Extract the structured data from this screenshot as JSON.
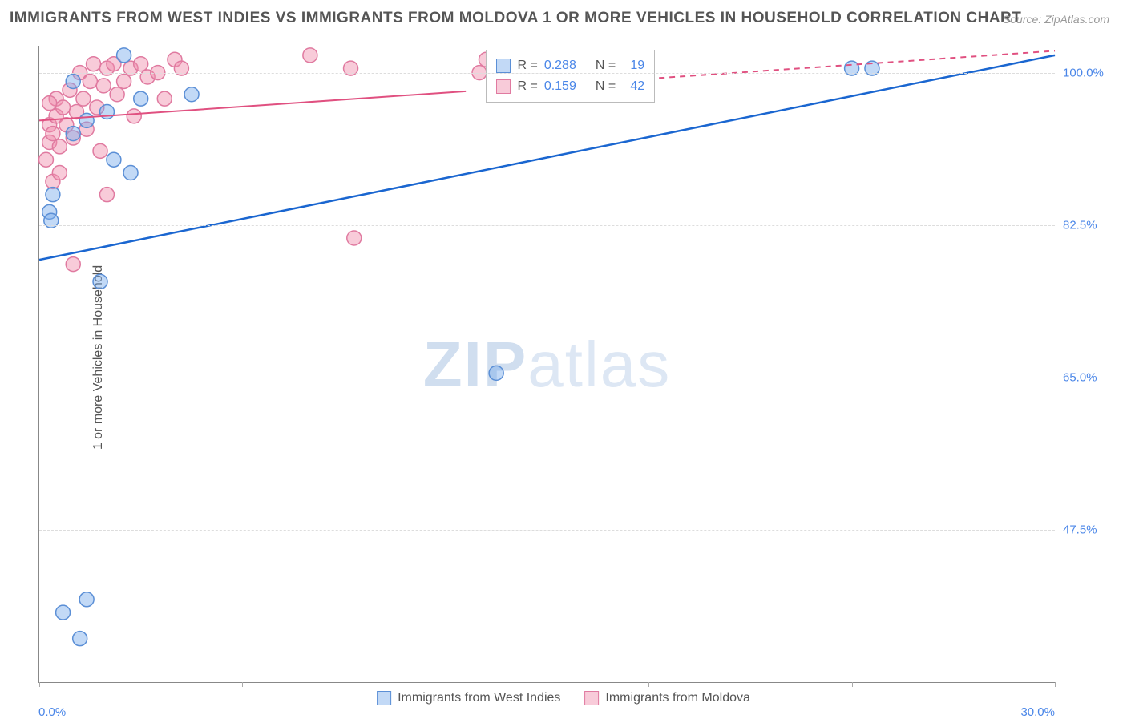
{
  "title": "IMMIGRANTS FROM WEST INDIES VS IMMIGRANTS FROM MOLDOVA 1 OR MORE VEHICLES IN HOUSEHOLD CORRELATION CHART",
  "source": "Source: ZipAtlas.com",
  "y_axis_label": "1 or more Vehicles in Household",
  "watermark_a": "ZIP",
  "watermark_b": "atlas",
  "chart": {
    "type": "scatter",
    "xlim": [
      0,
      30
    ],
    "ylim": [
      30,
      103
    ],
    "x_tick_labels": [
      "0.0%",
      "30.0%"
    ],
    "y_ticks": [
      47.5,
      65.0,
      82.5,
      100.0
    ],
    "y_tick_labels": [
      "47.5%",
      "65.0%",
      "82.5%",
      "100.0%"
    ],
    "x_tick_positions_pct": [
      0,
      20,
      40,
      60,
      80,
      100
    ],
    "grid_color": "#dddddd",
    "background_color": "#ffffff",
    "axis_color": "#888888",
    "label_color": "#4a86e8",
    "series": [
      {
        "name": "Immigrants from West Indies",
        "color_fill": "rgba(120,170,235,0.45)",
        "color_stroke": "#5b8fd6",
        "line_color": "#1a66d0",
        "marker_radius": 9,
        "r_value": "0.288",
        "n_value": "19",
        "trend": {
          "x1": 0,
          "y1": 78.5,
          "x2": 30,
          "y2": 102
        },
        "points": [
          [
            0.3,
            84.0
          ],
          [
            0.35,
            83.0
          ],
          [
            0.4,
            86.0
          ],
          [
            0.7,
            38.0
          ],
          [
            1.2,
            35.0
          ],
          [
            1.4,
            39.5
          ],
          [
            1.8,
            76.0
          ],
          [
            1.0,
            93.0
          ],
          [
            1.4,
            94.5
          ],
          [
            2.0,
            95.5
          ],
          [
            2.2,
            90.0
          ],
          [
            2.5,
            102.0
          ],
          [
            2.7,
            88.5
          ],
          [
            3.0,
            97.0
          ],
          [
            4.5,
            97.5
          ],
          [
            13.5,
            65.5
          ],
          [
            24.0,
            100.5
          ],
          [
            24.6,
            100.5
          ],
          [
            1.0,
            99.0
          ]
        ]
      },
      {
        "name": "Immigrants from Moldova",
        "color_fill": "rgba(240,140,170,0.45)",
        "color_stroke": "#e07aa0",
        "line_color": "#e05080",
        "marker_radius": 9,
        "r_value": "0.159",
        "n_value": "42",
        "trend": {
          "x1": 0,
          "y1": 94.5,
          "x2": 30,
          "y2": 102.5
        },
        "points": [
          [
            0.2,
            90.0
          ],
          [
            0.3,
            92.0
          ],
          [
            0.3,
            94.0
          ],
          [
            0.4,
            93.0
          ],
          [
            0.5,
            95.0
          ],
          [
            0.5,
            97.0
          ],
          [
            0.6,
            91.5
          ],
          [
            0.7,
            96.0
          ],
          [
            0.8,
            94.0
          ],
          [
            0.9,
            98.0
          ],
          [
            1.0,
            92.5
          ],
          [
            1.1,
            95.5
          ],
          [
            1.2,
            100.0
          ],
          [
            1.3,
            97.0
          ],
          [
            1.4,
            93.5
          ],
          [
            1.5,
            99.0
          ],
          [
            1.6,
            101.0
          ],
          [
            1.7,
            96.0
          ],
          [
            1.9,
            98.5
          ],
          [
            2.0,
            100.5
          ],
          [
            2.2,
            101.0
          ],
          [
            2.3,
            97.5
          ],
          [
            2.5,
            99.0
          ],
          [
            2.7,
            100.5
          ],
          [
            2.8,
            95.0
          ],
          [
            3.0,
            101.0
          ],
          [
            3.2,
            99.5
          ],
          [
            3.5,
            100.0
          ],
          [
            3.7,
            97.0
          ],
          [
            4.0,
            101.5
          ],
          [
            1.0,
            78.0
          ],
          [
            0.4,
            87.5
          ],
          [
            0.6,
            88.5
          ],
          [
            0.3,
            96.5
          ],
          [
            2.0,
            86.0
          ],
          [
            4.2,
            100.5
          ],
          [
            8.0,
            102.0
          ],
          [
            9.2,
            100.5
          ],
          [
            9.3,
            81.0
          ],
          [
            13.0,
            100.0
          ],
          [
            13.2,
            101.5
          ],
          [
            1.8,
            91.0
          ]
        ]
      }
    ],
    "legend_r": {
      "rows": [
        {
          "swatch_fill": "rgba(120,170,235,0.45)",
          "swatch_stroke": "#5b8fd6",
          "r": "0.288",
          "n": "19"
        },
        {
          "swatch_fill": "rgba(240,140,170,0.45)",
          "swatch_stroke": "#e07aa0",
          "r": "0.159",
          "n": "42"
        }
      ],
      "labels": {
        "r": "R =",
        "n": "N ="
      }
    },
    "bottom_legend": [
      {
        "swatch_fill": "rgba(120,170,235,0.45)",
        "swatch_stroke": "#5b8fd6",
        "label": "Immigrants from West Indies"
      },
      {
        "swatch_fill": "rgba(240,140,170,0.45)",
        "swatch_stroke": "#e07aa0",
        "label": "Immigrants from Moldova"
      }
    ]
  }
}
